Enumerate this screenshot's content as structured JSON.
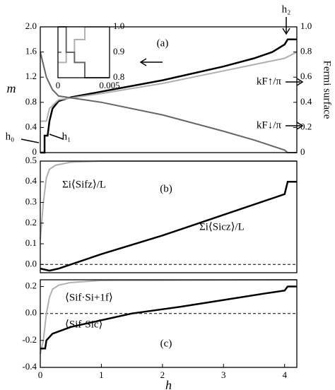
{
  "chart_data": [
    {
      "type": "line",
      "ylabel": "m",
      "y2label": "Fermi surface",
      "xlim": [
        0,
        4.2
      ],
      "ylim": [
        0,
        2.0
      ],
      "yticks": [
        0,
        0.4,
        0.8,
        1.2,
        1.6,
        {
          "value": 2.0,
          "label": "2.0"
        }
      ],
      "y2lim": [
        0,
        1.0
      ],
      "y2ticks": [
        0,
        0.2,
        0.4,
        0.6,
        0.8,
        {
          "value": 1.0,
          "label": "1.0"
        }
      ],
      "annotations": [
        "(a)",
        "h₂",
        "h₀",
        "h₁"
      ],
      "series": [
        {
          "color": "#000000",
          "width": 2.5,
          "x": [
            0,
            0.07,
            0.07,
            0.12,
            0.15,
            0.2,
            0.3,
            0.5,
            1,
            2,
            3,
            3.5,
            3.8,
            4.0,
            4.05,
            4.2
          ],
          "values": [
            0,
            0,
            0.27,
            0.27,
            0.5,
            0.7,
            0.82,
            0.88,
            0.97,
            1.15,
            1.37,
            1.5,
            1.6,
            1.72,
            1.8,
            1.8
          ]
        },
        {
          "name": "kF↑/π",
          "axis": "y2",
          "color": "#b0b0b0",
          "width": 2,
          "x": [
            0,
            0.1,
            0.15,
            0.3,
            1,
            2,
            3,
            3.5,
            4.0,
            4.2
          ],
          "values": [
            0.25,
            0.25,
            0.35,
            0.42,
            0.47,
            0.55,
            0.65,
            0.7,
            0.75,
            0.8
          ]
        },
        {
          "name": "kF↓/π",
          "axis": "y2",
          "color": "#666666",
          "width": 2,
          "x": [
            0,
            0.05,
            0.1,
            0.2,
            0.3,
            1,
            2,
            3,
            3.5,
            4.0,
            4.05,
            4.2
          ],
          "values": [
            0.8,
            0.7,
            0.6,
            0.5,
            0.45,
            0.4,
            0.3,
            0.17,
            0.1,
            0.02,
            0,
            0
          ]
        }
      ]
    },
    {
      "type": "line",
      "xlim": [
        0,
        0.005
      ],
      "ylim": [
        0.8,
        1.0
      ],
      "xticks": [
        0,
        0.005
      ],
      "yticks": [
        0.8,
        0.9,
        {
          "value": 1.0,
          "label": "1.0"
        }
      ],
      "yticks_side": "right",
      "series": [
        {
          "color": "#b0b0b0",
          "width": 2,
          "x": [
            0,
            0.0008,
            0.0008,
            0.0016,
            0.0016,
            0.0026,
            0.0026,
            0.005
          ],
          "values": [
            0.86,
            0.86,
            0.9,
            0.9,
            0.95,
            0.95,
            1.0,
            1.0
          ]
        },
        {
          "color": "#666666",
          "width": 2,
          "x": [
            0,
            0.0008,
            0.0008,
            0.0016,
            0.0016,
            0.0026,
            0.0026,
            0.005
          ],
          "values": [
            1.0,
            1.0,
            0.9,
            0.9,
            0.86,
            0.86,
            0.8,
            0.8
          ]
        }
      ]
    },
    {
      "type": "line",
      "xlim": [
        0,
        4.2
      ],
      "ylim": [
        -0.04,
        0.5
      ],
      "yticks": [
        {
          "value": 0.0,
          "label": "0.0"
        },
        0.1,
        0.2,
        0.3,
        0.4,
        0.5
      ],
      "zero_line": true,
      "annotations": [
        "(b)"
      ],
      "series": [
        {
          "name": "Σi⟨Sifz⟩/L",
          "color": "#b0b0b0",
          "width": 2,
          "x": [
            0,
            0.05,
            0.1,
            0.15,
            0.25,
            0.5,
            1,
            4.2
          ],
          "values": [
            0.12,
            0.3,
            0.42,
            0.46,
            0.48,
            0.495,
            0.5,
            0.5
          ]
        },
        {
          "name": "Σi⟨Sicz⟩/L",
          "color": "#000000",
          "width": 2.5,
          "x": [
            0,
            0.15,
            0.3,
            0.5,
            1,
            2,
            3,
            3.5,
            4.0,
            4.05,
            4.2
          ],
          "values": [
            -0.02,
            -0.03,
            -0.02,
            0,
            0.05,
            0.14,
            0.24,
            0.29,
            0.34,
            0.4,
            0.4
          ]
        }
      ]
    },
    {
      "type": "line",
      "xlabel": "h",
      "xlim": [
        0,
        4.2
      ],
      "ylim": [
        -0.4,
        0.25
      ],
      "xticks": [
        0,
        1,
        2,
        3,
        4
      ],
      "yticks": [
        -0.4,
        -0.2,
        {
          "value": 0.0,
          "label": "0.0"
        },
        0.2
      ],
      "zero_line": true,
      "annotations": [
        "(c)"
      ],
      "series": [
        {
          "name": "⟨Sif·Si+1f⟩",
          "color": "#b0b0b0",
          "width": 2,
          "x": [
            0,
            0.05,
            0.1,
            0.15,
            0.2,
            0.3,
            0.5,
            1,
            4.2
          ],
          "values": [
            -0.3,
            -0.2,
            0.0,
            0.12,
            0.18,
            0.21,
            0.23,
            0.245,
            0.25
          ]
        },
        {
          "name": "⟨Sif·Sic⟩",
          "color": "#000000",
          "width": 2.5,
          "x": [
            0,
            0.08,
            0.1,
            0.2,
            0.5,
            1,
            1.5,
            2.3,
            3,
            3.7,
            4.0,
            4.05,
            4.2
          ],
          "values": [
            -0.26,
            -0.26,
            -0.2,
            -0.15,
            -0.1,
            -0.05,
            0,
            0.05,
            0.1,
            0.15,
            0.17,
            0.2,
            0.2
          ]
        }
      ]
    }
  ]
}
